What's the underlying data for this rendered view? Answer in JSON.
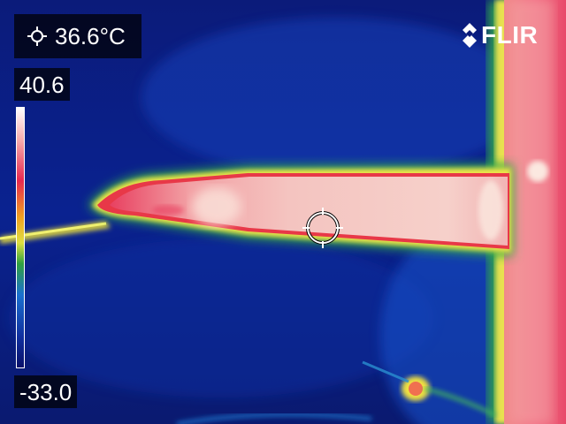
{
  "camera": {
    "brand": "FLIR",
    "spot_temperature": "36.6°C",
    "scale_max": "40.6",
    "scale_min": "-33.0"
  },
  "icons": {
    "spot": "crosshair-spot-icon",
    "logo": "flir-logo-icon"
  },
  "palette": {
    "cold": "#0a1a78",
    "mid": "#1550d0",
    "warm": "#e8283c",
    "hot": "#f8d4cc",
    "edge": "#f0e040"
  }
}
